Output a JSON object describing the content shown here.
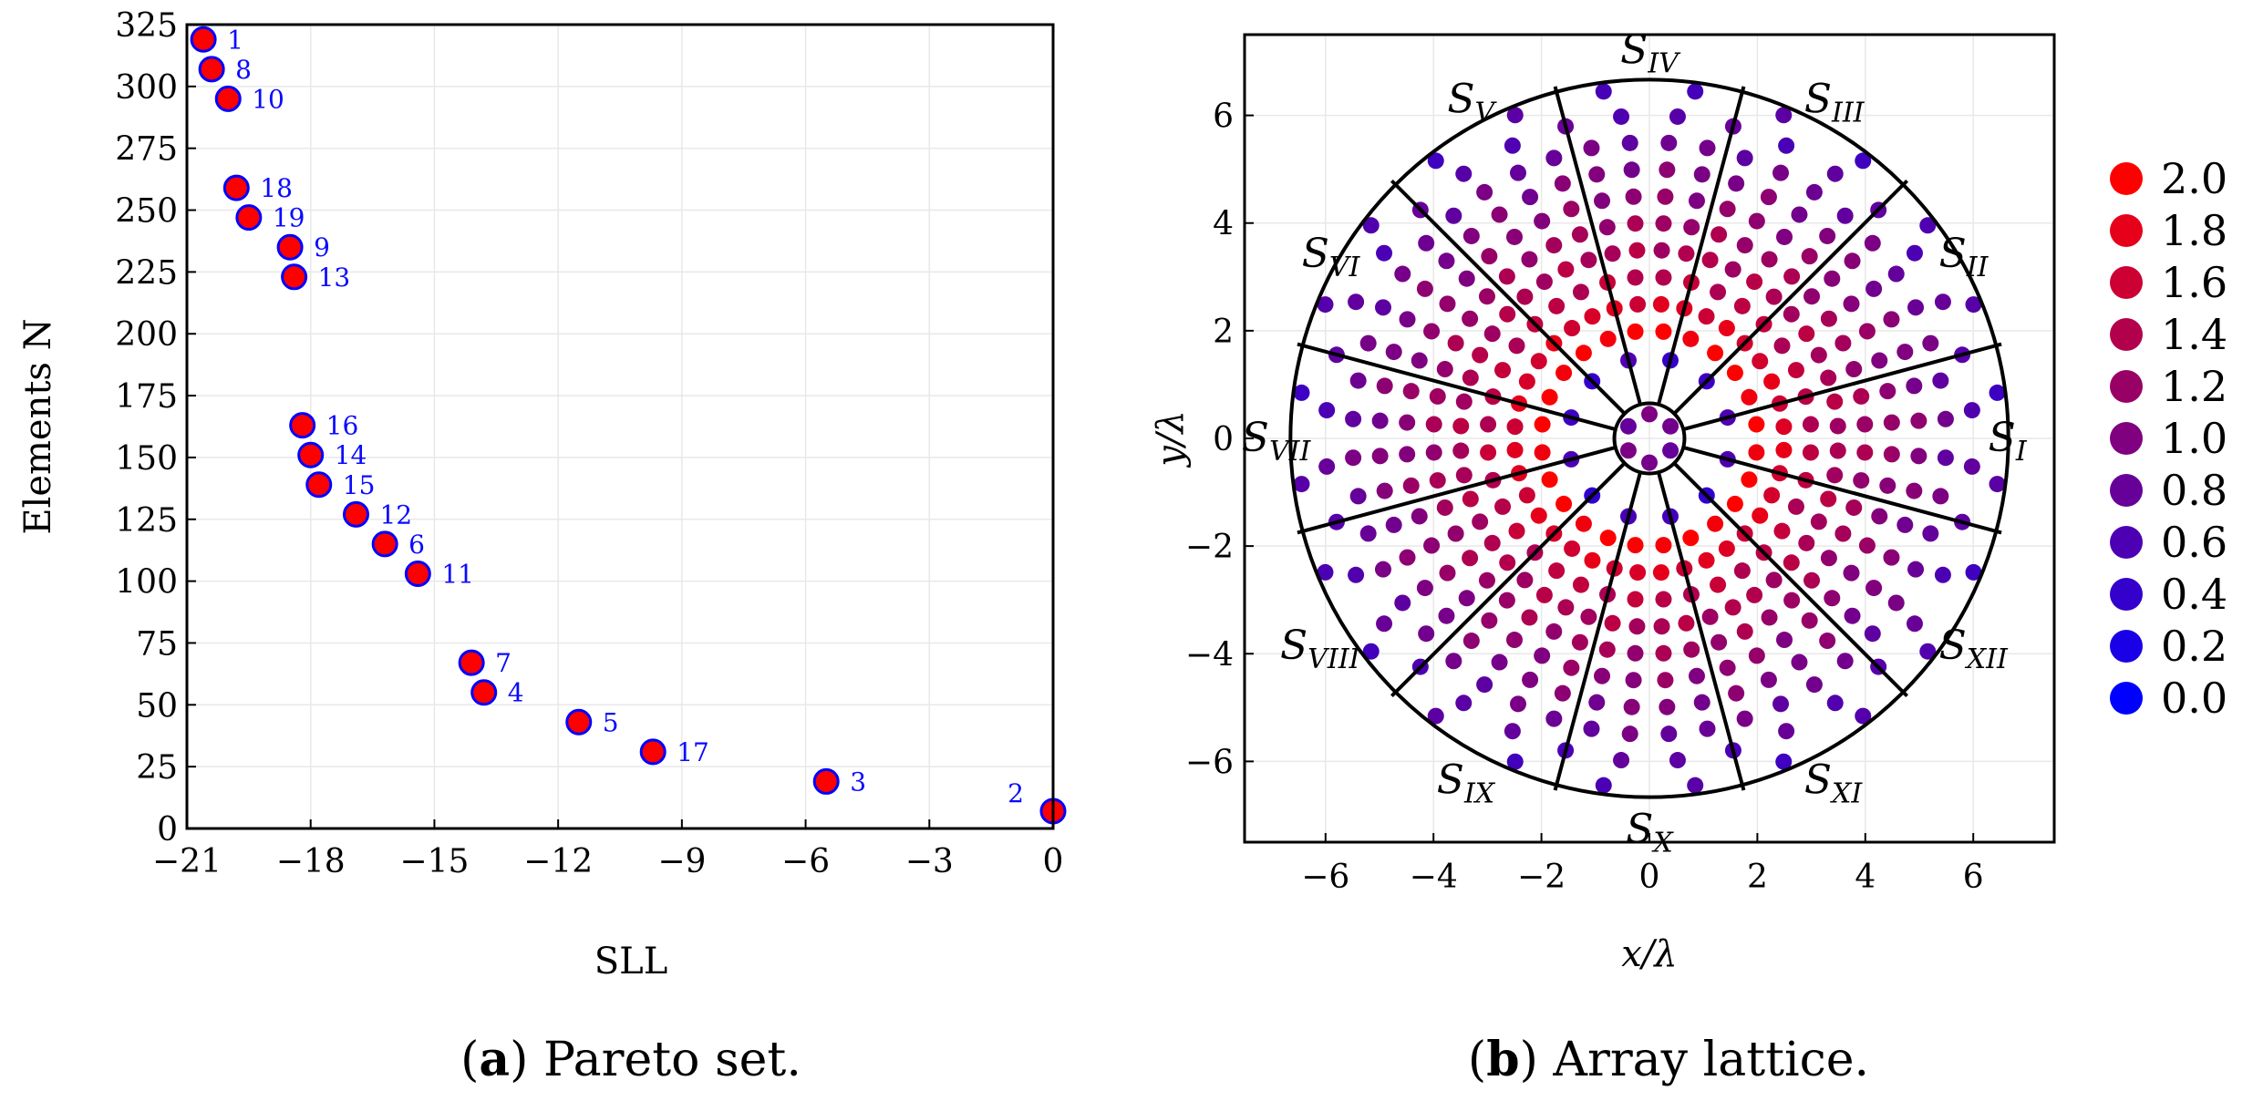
{
  "chart_data": [
    {
      "type": "scatter",
      "xlabel": "SLL",
      "ylabel": "Elements N",
      "xlim": [
        -21,
        0
      ],
      "ylim": [
        0,
        325
      ],
      "xticks": [
        "−21",
        "−18",
        "−15",
        "−12",
        "−9",
        "−6",
        "−3",
        "0"
      ],
      "xtick_values": [
        -21,
        -18,
        -15,
        -12,
        -9,
        -6,
        -3,
        0
      ],
      "yticks": [
        "0",
        "25",
        "50",
        "75",
        "100",
        "125",
        "150",
        "175",
        "200",
        "225",
        "250",
        "275",
        "300",
        "325"
      ],
      "ytick_values": [
        0,
        25,
        50,
        75,
        100,
        125,
        150,
        175,
        200,
        225,
        250,
        275,
        300,
        325
      ],
      "grid": true,
      "marker_fill": "#ff0000",
      "marker_edge": "#0000ff",
      "label_color": "#0a0aff",
      "caption_letter": "a",
      "caption_text": " Pareto set.",
      "points": [
        {
          "label": "1",
          "x": -20.6,
          "y": 319
        },
        {
          "label": "8",
          "x": -20.4,
          "y": 307
        },
        {
          "label": "10",
          "x": -20.0,
          "y": 295
        },
        {
          "label": "18",
          "x": -19.8,
          "y": 259
        },
        {
          "label": "19",
          "x": -19.5,
          "y": 247
        },
        {
          "label": "9",
          "x": -18.5,
          "y": 235
        },
        {
          "label": "13",
          "x": -18.4,
          "y": 223
        },
        {
          "label": "16",
          "x": -18.2,
          "y": 163
        },
        {
          "label": "14",
          "x": -18.0,
          "y": 151
        },
        {
          "label": "15",
          "x": -17.8,
          "y": 139
        },
        {
          "label": "12",
          "x": -16.9,
          "y": 127
        },
        {
          "label": "6",
          "x": -16.2,
          "y": 115
        },
        {
          "label": "11",
          "x": -15.4,
          "y": 103
        },
        {
          "label": "7",
          "x": -14.1,
          "y": 67
        },
        {
          "label": "4",
          "x": -13.8,
          "y": 55
        },
        {
          "label": "5",
          "x": -11.5,
          "y": 43
        },
        {
          "label": "17",
          "x": -9.7,
          "y": 31
        },
        {
          "label": "3",
          "x": -5.5,
          "y": 19
        },
        {
          "label": "2",
          "x": 0.0,
          "y": 7
        }
      ]
    },
    {
      "type": "scatter",
      "xlabel": "x/λ",
      "ylabel": "y/λ",
      "xlim": [
        -7.5,
        7.5
      ],
      "ylim": [
        -7.5,
        7.5
      ],
      "xticks": [
        "−6",
        "−4",
        "−2",
        "0",
        "2",
        "4",
        "6"
      ],
      "xtick_values": [
        -6,
        -4,
        -2,
        0,
        2,
        4,
        6
      ],
      "yticks": [
        "−6",
        "−4",
        "−2",
        "0",
        "2",
        "4",
        "6"
      ],
      "ytick_values": [
        -6,
        -4,
        -2,
        0,
        2,
        4,
        6
      ],
      "grid": true,
      "array_radius": 6.65,
      "center_radius": 0.65,
      "sector_count": 12,
      "sectors": [
        {
          "base": "S",
          "sub": "I"
        },
        {
          "base": "S",
          "sub": "II"
        },
        {
          "base": "S",
          "sub": "III"
        },
        {
          "base": "S",
          "sub": "IV"
        },
        {
          "base": "S",
          "sub": "V"
        },
        {
          "base": "S",
          "sub": "VI"
        },
        {
          "base": "S",
          "sub": "VII"
        },
        {
          "base": "S",
          "sub": "VIII"
        },
        {
          "base": "S",
          "sub": "IX"
        },
        {
          "base": "S",
          "sub": "X"
        },
        {
          "base": "S",
          "sub": "XI"
        },
        {
          "base": "S",
          "sub": "XII"
        }
      ],
      "rings": [
        {
          "r": 0.45,
          "count": 6,
          "value": 0.9
        },
        {
          "r": 1.5,
          "count": 12,
          "value": 0.5
        },
        {
          "r": 2.0,
          "count": 24,
          "value": 2.0
        },
        {
          "r": 2.5,
          "count": 36,
          "value": 1.7
        },
        {
          "r": 3.0,
          "count": 36,
          "value": 1.45
        },
        {
          "r": 3.5,
          "count": 48,
          "value": 1.35
        },
        {
          "r": 4.0,
          "count": 48,
          "value": 1.25
        },
        {
          "r": 4.5,
          "count": 48,
          "value": 1.1
        },
        {
          "r": 5.0,
          "count": 48,
          "value": 1.0
        },
        {
          "r": 5.5,
          "count": 48,
          "value": 0.85
        },
        {
          "r": 6.0,
          "count": 36,
          "value": 0.7
        },
        {
          "r": 6.5,
          "count": 24,
          "value": 0.6
        }
      ],
      "colorbar": {
        "labels": [
          "2.0",
          "1.8",
          "1.6",
          "1.4",
          "1.2",
          "1.0",
          "0.8",
          "0.6",
          "0.4",
          "0.2",
          "0.0"
        ],
        "values": [
          2.0,
          1.8,
          1.6,
          1.4,
          1.2,
          1.0,
          0.8,
          0.6,
          0.4,
          0.2,
          0.0
        ],
        "color_high": "#ff0000",
        "color_low": "#0000ff"
      },
      "caption_letter": "b",
      "caption_text": " Array lattice."
    }
  ]
}
